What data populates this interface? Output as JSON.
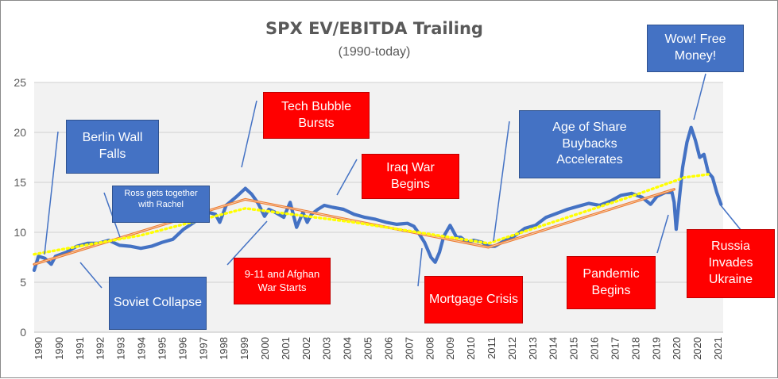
{
  "chart_data": {
    "type": "line",
    "title": "SPX EV/EBITDA Trailing",
    "subtitle": "(1990-today)",
    "ylim": [
      0,
      25
    ],
    "yticks": [
      0,
      5,
      10,
      15,
      20,
      25
    ],
    "xlim": [
      1990,
      2022.3
    ],
    "xticks": [
      "1990",
      "1990",
      "1991",
      "1992",
      "1993",
      "1994",
      "1995",
      "1996",
      "1997",
      "1998",
      "1999",
      "2000",
      "2001",
      "2002",
      "2003",
      "2004",
      "2005",
      "2006",
      "2007",
      "2008",
      "2009",
      "2010",
      "2011",
      "2012",
      "2013",
      "2014",
      "2015",
      "2016",
      "2017",
      "2018",
      "2019",
      "2020",
      "2020",
      "2021"
    ],
    "grid": true,
    "series": [
      {
        "color": "#4472c4",
        "x": [
          1990.0,
          1990.2,
          1990.5,
          1990.8,
          1991.0,
          1991.5,
          1992.0,
          1992.5,
          1993.0,
          1993.5,
          1994.0,
          1994.5,
          1995.0,
          1995.5,
          1996.0,
          1996.5,
          1997.0,
          1997.5,
          1998.0,
          1998.5,
          1998.7,
          1999.0,
          1999.5,
          1999.9,
          2000.2,
          2000.5,
          2000.8,
          2001.0,
          2001.3,
          2001.7,
          2002.0,
          2002.3,
          2002.6,
          2002.8,
          2003.0,
          2003.3,
          2003.6,
          2004.0,
          2004.5,
          2005.0,
          2005.5,
          2006.0,
          2006.5,
          2007.0,
          2007.5,
          2007.8,
          2008.0,
          2008.3,
          2008.6,
          2008.8,
          2009.0,
          2009.2,
          2009.5,
          2009.8,
          2010.0,
          2010.3,
          2010.6,
          2011.0,
          2011.3,
          2011.6,
          2012.0,
          2012.5,
          2013.0,
          2013.5,
          2014.0,
          2014.5,
          2015.0,
          2015.5,
          2016.0,
          2016.5,
          2017.0,
          2017.5,
          2018.0,
          2018.5,
          2018.9,
          2019.2,
          2019.6,
          2019.9,
          2020.0,
          2020.1,
          2020.25,
          2020.4,
          2020.6,
          2020.8,
          2021.0,
          2021.2,
          2021.4,
          2021.6,
          2021.8,
          2022.0,
          2022.2
        ],
        "y": [
          6.2,
          7.6,
          7.4,
          6.8,
          7.6,
          8.0,
          8.6,
          8.9,
          8.9,
          9.2,
          8.7,
          8.6,
          8.4,
          8.6,
          9.0,
          9.3,
          10.3,
          11.0,
          12.1,
          11.8,
          11.0,
          12.7,
          13.6,
          14.4,
          13.8,
          12.9,
          11.6,
          12.3,
          12.0,
          11.5,
          13.0,
          10.5,
          12.0,
          11.0,
          11.8,
          12.3,
          12.7,
          12.5,
          12.3,
          11.8,
          11.5,
          11.3,
          11.0,
          10.8,
          10.9,
          10.6,
          10.0,
          9.0,
          7.5,
          7.0,
          8.0,
          9.6,
          10.7,
          9.5,
          9.5,
          9.0,
          9.2,
          9.0,
          8.6,
          8.6,
          9.1,
          9.6,
          10.4,
          10.7,
          11.5,
          11.9,
          12.3,
          12.6,
          12.9,
          12.7,
          13.1,
          13.7,
          13.9,
          13.5,
          12.8,
          13.6,
          14.0,
          14.0,
          13.0,
          10.3,
          13.5,
          16.5,
          19.0,
          20.5,
          19.2,
          17.5,
          17.8,
          16.0,
          15.5,
          14.0,
          12.8
        ]
      },
      {
        "color": "#ed7d31",
        "x": [
          1990.0,
          1999.9,
          2011.3,
          2020.0
        ],
        "y": [
          6.8,
          13.3,
          8.5,
          14.3
        ]
      },
      {
        "color": "#ffff00",
        "x": [
          1990.0,
          1995.0,
          1999.9,
          2005.0,
          2011.3,
          2015.0,
          2018.0,
          2020.5,
          2021.6
        ],
        "y": [
          7.8,
          9.7,
          12.4,
          11.0,
          8.9,
          11.5,
          13.6,
          15.5,
          15.8
        ]
      }
    ]
  },
  "annotations": {
    "berlin": "Berlin Wall Falls",
    "soviet": "Soviet Collapse",
    "ross": "Ross gets together with Rachel",
    "tech": "Tech Bubble Bursts",
    "nine11": "9-11 and Afghan War Starts",
    "iraq": "Iraq War Begins",
    "mortgage": "Mortgage Crisis",
    "buybacks": "Age of Share Buybacks Accelerates",
    "pandemic": "Pandemic Begins",
    "wow": "Wow! Free Money!",
    "russia": "Russia Invades Ukraine"
  }
}
